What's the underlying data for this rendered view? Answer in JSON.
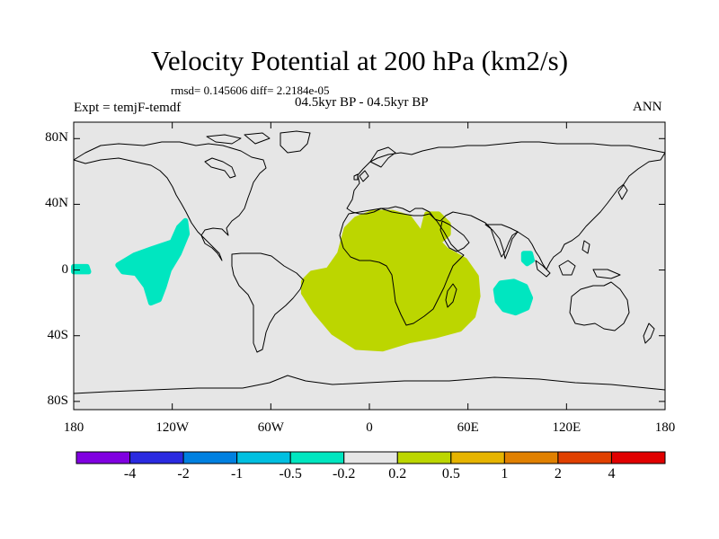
{
  "title": "Velocity Potential at 200 hPa (km2/s)",
  "stats": "rmsd= 0.145606 diff= 2.2184e-05",
  "left_label": "Expt = temjF-temdf",
  "center_label": "04.5kyr BP - 04.5kyr BP",
  "right_label": "ANN",
  "map": {
    "lat_ticks": [
      {
        "lat": 80,
        "label": "80N"
      },
      {
        "lat": 40,
        "label": "40N"
      },
      {
        "lat": 0,
        "label": "0"
      },
      {
        "lat": -40,
        "label": "40S"
      },
      {
        "lat": -80,
        "label": "80S"
      }
    ],
    "lon_ticks": [
      {
        "lon": -180,
        "label": "180"
      },
      {
        "lon": -120,
        "label": "120W"
      },
      {
        "lon": -60,
        "label": "60W"
      },
      {
        "lon": 0,
        "label": "0"
      },
      {
        "lon": 60,
        "label": "60E"
      },
      {
        "lon": 120,
        "label": "120E"
      },
      {
        "lon": 180,
        "label": "180"
      }
    ],
    "background_color": "#e6e6e6",
    "coast_color": "#000000",
    "regions": [
      {
        "name": "africa-indian-positive-anomaly",
        "bin": "0.2 to 0.5",
        "color": "#bcd600",
        "points": [
          [
            -40,
            -7
          ],
          [
            -35,
            -2
          ],
          [
            -25,
            0
          ],
          [
            -18,
            10
          ],
          [
            -14,
            25
          ],
          [
            -8,
            31
          ],
          [
            2,
            35
          ],
          [
            14,
            35
          ],
          [
            24,
            32
          ],
          [
            30,
            24
          ],
          [
            32,
            18
          ],
          [
            33,
            26
          ],
          [
            35,
            34
          ],
          [
            42,
            34
          ],
          [
            48,
            28
          ],
          [
            48,
            22
          ],
          [
            42,
            17
          ],
          [
            47,
            12
          ],
          [
            58,
            6
          ],
          [
            65,
            -4
          ],
          [
            66,
            -16
          ],
          [
            63,
            -28
          ],
          [
            55,
            -36
          ],
          [
            40,
            -40
          ],
          [
            24,
            -43
          ],
          [
            8,
            -48
          ],
          [
            -8,
            -47
          ],
          [
            -22,
            -38
          ],
          [
            -33,
            -25
          ],
          [
            -40,
            -14
          ]
        ]
      },
      {
        "name": "east-pacific-negative-anomaly",
        "bin": "-0.5 to -0.2",
        "color": "#00e6c0",
        "points": [
          [
            -153,
            3
          ],
          [
            -143,
            9
          ],
          [
            -132,
            13
          ],
          [
            -120,
            17
          ],
          [
            -116,
            26
          ],
          [
            -112,
            30
          ],
          [
            -111,
            22
          ],
          [
            -116,
            10
          ],
          [
            -122,
            0
          ],
          [
            -125,
            -10
          ],
          [
            -128,
            -18
          ],
          [
            -133,
            -20
          ],
          [
            -136,
            -10
          ],
          [
            -142,
            -2
          ],
          [
            -150,
            -1
          ]
        ]
      },
      {
        "name": "central-indian-ocean-negative-anomaly",
        "bin": "-0.5 to -0.2",
        "color": "#00e6c0",
        "points": [
          [
            80,
            -8
          ],
          [
            88,
            -7
          ],
          [
            95,
            -10
          ],
          [
            98,
            -17
          ],
          [
            96,
            -23
          ],
          [
            89,
            -26
          ],
          [
            82,
            -24
          ],
          [
            78,
            -19
          ],
          [
            77,
            -12
          ]
        ]
      },
      {
        "name": "andaman-sea-negative-anomaly",
        "bin": "-0.5 to -0.2",
        "color": "#00e6c0",
        "points": [
          [
            94,
            10
          ],
          [
            98,
            10
          ],
          [
            99,
            6
          ],
          [
            96,
            4
          ],
          [
            94,
            6
          ]
        ]
      },
      {
        "name": "far-east-pacific-negative-anomaly",
        "bin": "-0.5 to -0.2",
        "color": "#00e6c0",
        "points": [
          [
            -180,
            2
          ],
          [
            -172,
            2
          ],
          [
            -171,
            -1
          ],
          [
            -180,
            -1
          ]
        ]
      }
    ]
  },
  "colorbar": {
    "colors": [
      "#8000e0",
      "#2a2ae0",
      "#0080e0",
      "#00bfe0",
      "#00e6c0",
      "#e6e6e6",
      "#bcd600",
      "#e6b400",
      "#e08000",
      "#e04000",
      "#e00000"
    ],
    "labels": [
      "-4",
      "-2",
      "-1",
      "-0.5",
      "-0.2",
      "0.2",
      "0.5",
      "1",
      "2",
      "4"
    ]
  }
}
